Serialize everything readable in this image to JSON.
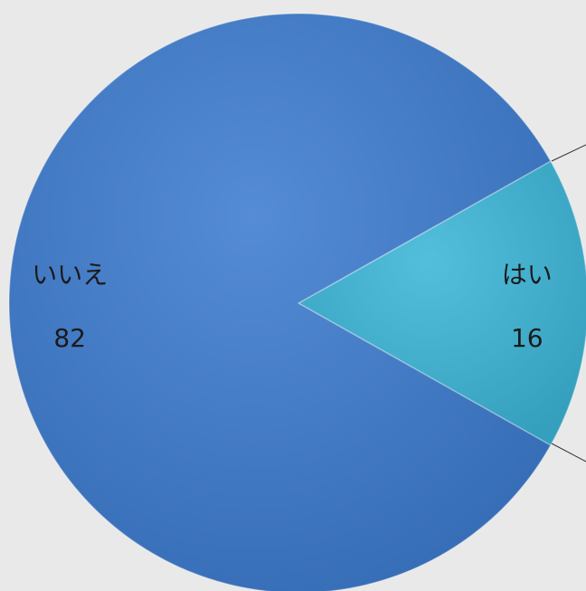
{
  "chart_data": {
    "type": "pie",
    "categories": [
      "はい",
      "いいえ"
    ],
    "values": [
      16,
      82
    ],
    "colors": [
      "#3cb6d8",
      "#3d7ccf"
    ]
  }
}
